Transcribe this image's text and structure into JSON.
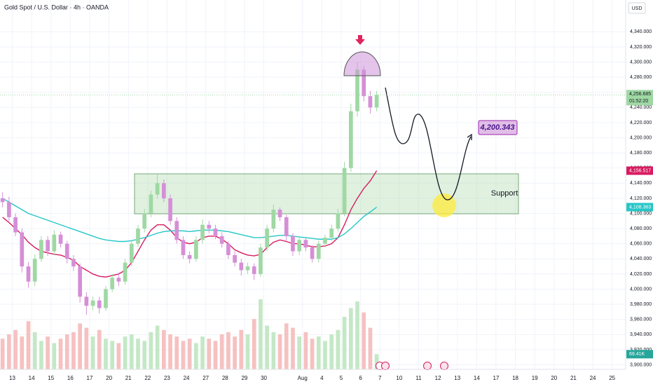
{
  "chart_data": {
    "type": "candlestick",
    "title": "Gold Spot / U.S. Dollar · 4h · OANDA",
    "currency": "USD",
    "up_color": "#9fd8a3",
    "down_color": "#d58fd6",
    "grid": true,
    "x": [
      0,
      1,
      2,
      3,
      4,
      5,
      6,
      7,
      8,
      9,
      10,
      11,
      12,
      13,
      14,
      15,
      16,
      17,
      18,
      19,
      20,
      21,
      22,
      23,
      24,
      25,
      26,
      27,
      28,
      29,
      30,
      31,
      32,
      33,
      34,
      35,
      36,
      37,
      38,
      39,
      40,
      41,
      42,
      43,
      44,
      45,
      46,
      47,
      48,
      49,
      50,
      51,
      52,
      53,
      54,
      55,
      56,
      57,
      58
    ],
    "open": [
      4120,
      4115,
      4095,
      4075,
      4030,
      4010,
      4040,
      4065,
      4050,
      4072,
      4060,
      4040,
      4030,
      3990,
      3978,
      3985,
      3975,
      4000,
      4015,
      4010,
      4035,
      4060,
      4080,
      4100,
      4125,
      4140,
      4120,
      4090,
      4065,
      4045,
      4040,
      4065,
      4085,
      4080,
      4070,
      4060,
      4045,
      4035,
      4025,
      4030,
      4020,
      4055,
      4080,
      4105,
      4095,
      4070,
      4050,
      4065,
      4055,
      4040,
      4060,
      4068,
      4080,
      4100,
      4160,
      4235,
      4290,
      4255,
      4240
    ],
    "high": [
      4128,
      4122,
      4100,
      4080,
      4036,
      4046,
      4070,
      4070,
      4078,
      4076,
      4064,
      4045,
      4034,
      3996,
      3990,
      3990,
      4004,
      4020,
      4022,
      4040,
      4064,
      4085,
      4106,
      4130,
      4152,
      4145,
      4125,
      4095,
      4070,
      4050,
      4070,
      4092,
      4090,
      4085,
      4075,
      4063,
      4050,
      4040,
      4035,
      4034,
      4060,
      4085,
      4112,
      4108,
      4098,
      4074,
      4070,
      4068,
      4058,
      4064,
      4072,
      4085,
      4106,
      4168,
      4245,
      4300,
      4295,
      4262,
      4262
    ],
    "low": [
      4108,
      4090,
      4070,
      4022,
      4002,
      4004,
      4036,
      4044,
      4045,
      4055,
      4034,
      4024,
      3982,
      3966,
      3972,
      3968,
      3971,
      3996,
      4004,
      4006,
      4030,
      4056,
      4075,
      4095,
      4120,
      4115,
      4085,
      4060,
      4040,
      4034,
      4036,
      4060,
      4074,
      4066,
      4055,
      4040,
      4030,
      4018,
      4020,
      4012,
      4016,
      4050,
      4075,
      4090,
      4064,
      4044,
      4045,
      4050,
      4035,
      4035,
      4055,
      4064,
      4076,
      4096,
      4155,
      4228,
      4248,
      4232,
      4235
    ],
    "close": [
      4115,
      4095,
      4075,
      4030,
      4010,
      4040,
      4065,
      4050,
      4072,
      4060,
      4040,
      4030,
      3990,
      3978,
      3985,
      3975,
      4000,
      4015,
      4010,
      4035,
      4060,
      4080,
      4100,
      4125,
      4140,
      4120,
      4090,
      4065,
      4045,
      4040,
      4065,
      4085,
      4080,
      4070,
      4060,
      4045,
      4035,
      4025,
      4030,
      4020,
      4055,
      4080,
      4105,
      4095,
      4070,
      4050,
      4065,
      4055,
      4040,
      4060,
      4068,
      4080,
      4100,
      4160,
      4235,
      4290,
      4255,
      4240,
      4256.685
    ],
    "last_label": "4,256.685",
    "countdown": "01:52:20",
    "volume": {
      "values": [
        140,
        160,
        180,
        150,
        220,
        170,
        130,
        150,
        120,
        140,
        160,
        170,
        210,
        190,
        150,
        180,
        140,
        130,
        120,
        150,
        160,
        140,
        130,
        170,
        200,
        180,
        160,
        150,
        130,
        140,
        120,
        150,
        140,
        130,
        160,
        170,
        150,
        180,
        160,
        230,
        320,
        200,
        170,
        160,
        210,
        190,
        150,
        170,
        140,
        150,
        130,
        160,
        180,
        240,
        280,
        310,
        260,
        190,
        69.41
      ],
      "up_color": "#c4e8c6",
      "down_color": "#f6c1c1",
      "badge_color": "#26a69a",
      "last_label": "69.41K"
    },
    "series": [
      {
        "color": "#d81b60",
        "last_label": "4,156.517",
        "values": [
          4095,
          4088,
          4080,
          4072,
          4062,
          4055,
          4050,
          4048,
          4046,
          4045,
          4042,
          4038,
          4030,
          4025,
          4020,
          4017,
          4016,
          4018,
          4020,
          4025,
          4035,
          4050,
          4065,
          4078,
          4085,
          4085,
          4078,
          4068,
          4062,
          4060,
          4062,
          4068,
          4070,
          4070,
          4066,
          4060,
          4052,
          4048,
          4045,
          4044,
          4046,
          4055,
          4062,
          4065,
          4063,
          4060,
          4060,
          4058,
          4056,
          4056,
          4057,
          4060,
          4068,
          4085,
          4105,
          4120,
          4133,
          4143,
          4156.517
        ]
      },
      {
        "color": "#26c6c6",
        "last_label": "4,108.363",
        "values": [
          4120,
          4115,
          4110,
          4105,
          4100,
          4097,
          4094,
          4091,
          4088,
          4085,
          4082,
          4079,
          4076,
          4073,
          4070,
          4067,
          4065,
          4064,
          4063,
          4063,
          4064,
          4066,
          4068,
          4071,
          4074,
          4076,
          4077,
          4077,
          4077,
          4076,
          4077,
          4078,
          4078,
          4078,
          4077,
          4076,
          4074,
          4072,
          4070,
          4068,
          4068,
          4069,
          4070,
          4071,
          4071,
          4070,
          4069,
          4068,
          4067,
          4066,
          4066,
          4066,
          4068,
          4073,
          4080,
          4088,
          4096,
          4102,
          4108.363
        ]
      }
    ],
    "xlim": [
      -0.4,
      96.6
    ],
    "ylim": [
      3894,
      4382
    ],
    "xticks": [
      {
        "value": 1.5,
        "label": "13"
      },
      {
        "value": 4.5,
        "label": "14"
      },
      {
        "value": 7.5,
        "label": "15"
      },
      {
        "value": 10.5,
        "label": "16"
      },
      {
        "value": 13.5,
        "label": "17"
      },
      {
        "value": 16.5,
        "label": "20"
      },
      {
        "value": 19.5,
        "label": "21"
      },
      {
        "value": 22.5,
        "label": "22"
      },
      {
        "value": 25.5,
        "label": "23"
      },
      {
        "value": 28.5,
        "label": "24"
      },
      {
        "value": 31.5,
        "label": "27"
      },
      {
        "value": 34.5,
        "label": "28"
      },
      {
        "value": 37.5,
        "label": "29"
      },
      {
        "value": 40.5,
        "label": "30"
      },
      {
        "value": 46.5,
        "label": "Aug"
      },
      {
        "value": 49.5,
        "label": "4"
      },
      {
        "value": 52.5,
        "label": "5"
      },
      {
        "value": 55.5,
        "label": "6"
      },
      {
        "value": 58.5,
        "label": "7"
      },
      {
        "value": 61.5,
        "label": "10"
      },
      {
        "value": 64.5,
        "label": "11"
      },
      {
        "value": 67.5,
        "label": "12"
      },
      {
        "value": 70.5,
        "label": "13"
      },
      {
        "value": 73.5,
        "label": "14"
      },
      {
        "value": 76.5,
        "label": "17"
      },
      {
        "value": 79.5,
        "label": "18"
      },
      {
        "value": 82.5,
        "label": "19"
      },
      {
        "value": 85.5,
        "label": "20"
      },
      {
        "value": 88.5,
        "label": "21"
      },
      {
        "value": 91.5,
        "label": "24"
      },
      {
        "value": 94.5,
        "label": "25"
      }
    ],
    "yticks": [
      {
        "value": 4340,
        "label": "4,340.000"
      },
      {
        "value": 4320,
        "label": "4,320.000"
      },
      {
        "value": 4300,
        "label": "4,300.000"
      },
      {
        "value": 4280,
        "label": "4,280.000"
      },
      {
        "value": 4260,
        "label": "4,260.000"
      },
      {
        "value": 4240,
        "label": "4,240.000"
      },
      {
        "value": 4220,
        "label": "4,220.000"
      },
      {
        "value": 4200,
        "label": "4,200.000"
      },
      {
        "value": 4180,
        "label": "4,180.000"
      },
      {
        "value": 4160,
        "label": "4,160.000"
      },
      {
        "value": 4140,
        "label": "4,140.000"
      },
      {
        "value": 4120,
        "label": "4,120.000"
      },
      {
        "value": 4100,
        "label": "4,100.000"
      },
      {
        "value": 4080,
        "label": "4,080.000"
      },
      {
        "value": 4060,
        "label": "4,060.000"
      },
      {
        "value": 4040,
        "label": "4,040.000"
      },
      {
        "value": 4020,
        "label": "4,020.000"
      },
      {
        "value": 4000,
        "label": "4,000.000"
      },
      {
        "value": 3980,
        "label": "3,980.000"
      },
      {
        "value": 3960,
        "label": "3,960.000"
      },
      {
        "value": 3940,
        "label": "3,940.000"
      },
      {
        "value": 3920,
        "label": "3,920.000"
      },
      {
        "value": 3900,
        "label": "3,900.000"
      }
    ],
    "annotations": {
      "target": "4,200.343",
      "support": "Support"
    }
  }
}
